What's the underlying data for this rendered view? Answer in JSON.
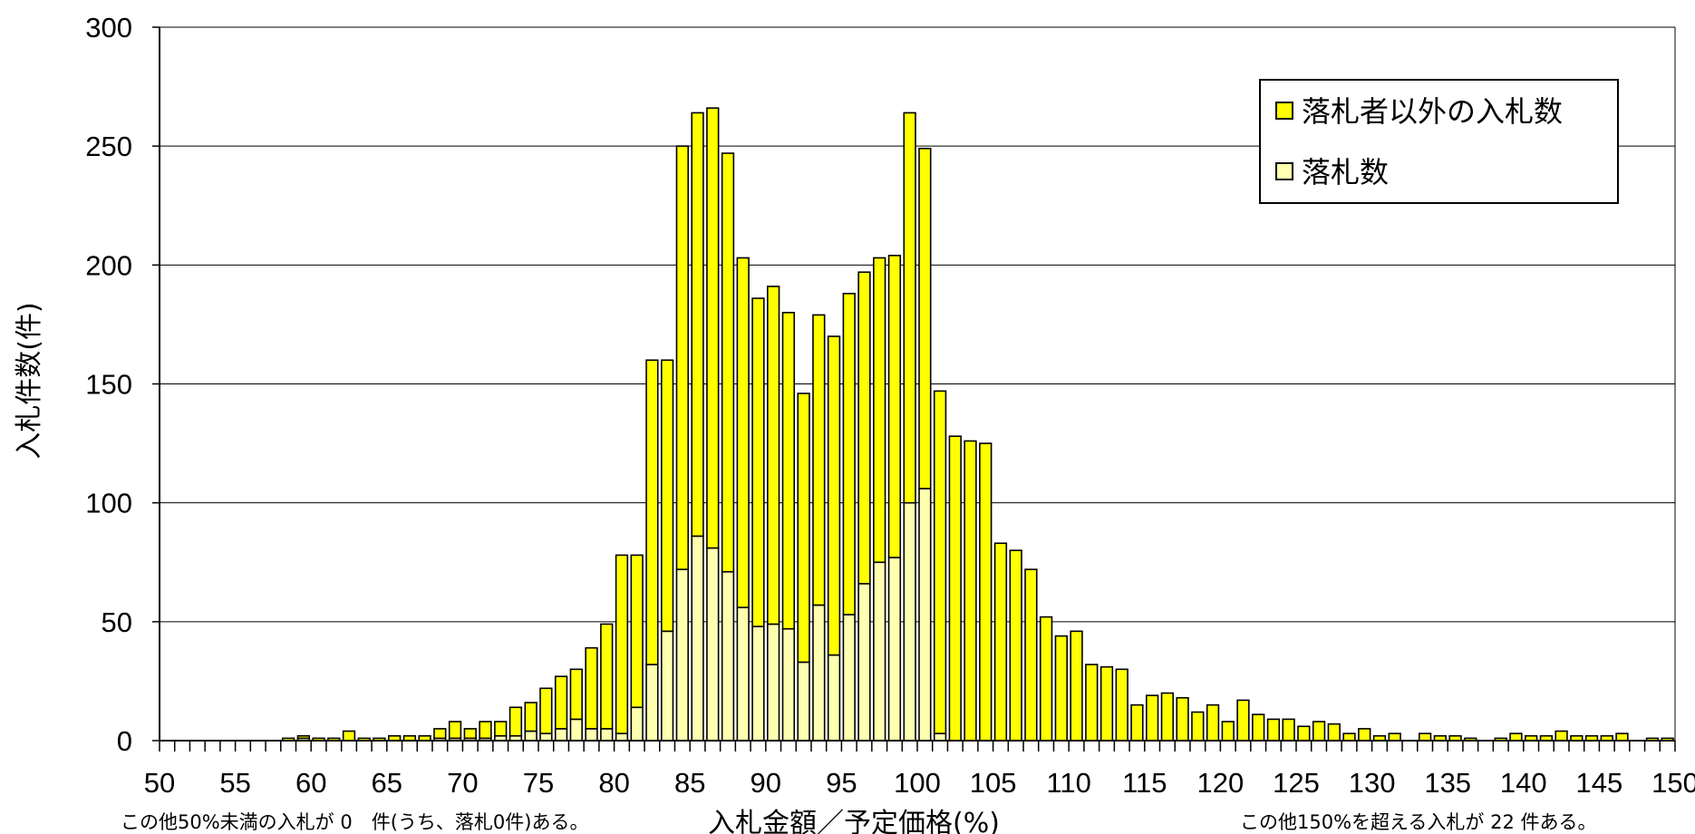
{
  "chart_data": {
    "type": "bar",
    "stacked": true,
    "xlabel": "入札金額／予定価格(%)",
    "ylabel": "入札件数(件)",
    "ylim": [
      0,
      300
    ],
    "xlim": [
      50,
      150
    ],
    "bin_width": 1,
    "y_ticks": [
      0,
      50,
      100,
      150,
      200,
      250,
      300
    ],
    "x_ticks": [
      50,
      55,
      60,
      65,
      70,
      75,
      80,
      85,
      90,
      95,
      100,
      105,
      110,
      115,
      120,
      125,
      130,
      135,
      140,
      145,
      150
    ],
    "grid": "horizontal",
    "legend_position": "top-right",
    "x": [
      50,
      51,
      52,
      53,
      54,
      55,
      56,
      57,
      58,
      59,
      60,
      61,
      62,
      63,
      64,
      65,
      66,
      67,
      68,
      69,
      70,
      71,
      72,
      73,
      74,
      75,
      76,
      77,
      78,
      79,
      80,
      81,
      82,
      83,
      84,
      85,
      86,
      87,
      88,
      89,
      90,
      91,
      92,
      93,
      94,
      95,
      96,
      97,
      98,
      99,
      100,
      101,
      102,
      103,
      104,
      105,
      106,
      107,
      108,
      109,
      110,
      111,
      112,
      113,
      114,
      115,
      116,
      117,
      118,
      119,
      120,
      121,
      122,
      123,
      124,
      125,
      126,
      127,
      128,
      129,
      130,
      131,
      132,
      133,
      134,
      135,
      136,
      137,
      138,
      139,
      140,
      141,
      142,
      143,
      144,
      145,
      146,
      147,
      148,
      149
    ],
    "series": [
      {
        "name": "落札数",
        "color": "#FFFFB0",
        "values": [
          0,
          0,
          0,
          0,
          0,
          0,
          0,
          0,
          0,
          1,
          0,
          0,
          0,
          0,
          0,
          0,
          0,
          0,
          1,
          1,
          1,
          1,
          2,
          2,
          4,
          3,
          5,
          9,
          5,
          5,
          3,
          14,
          32,
          46,
          72,
          86,
          81,
          71,
          56,
          48,
          49,
          47,
          33,
          57,
          36,
          53,
          66,
          75,
          77,
          100,
          106,
          3,
          0,
          0,
          0,
          0,
          0,
          0,
          0,
          0,
          0,
          0,
          0,
          0,
          0,
          0,
          0,
          0,
          0,
          0,
          0,
          0,
          0,
          0,
          0,
          0,
          0,
          0,
          0,
          0,
          0,
          0,
          0,
          0,
          0,
          0,
          0,
          0,
          0,
          0,
          0,
          0,
          0,
          0,
          0,
          0,
          0,
          0,
          0,
          0
        ]
      },
      {
        "name": "落札者以外の入札数",
        "color": "#FFFF00",
        "values": [
          0,
          0,
          0,
          0,
          0,
          0,
          0,
          0,
          1,
          1,
          1,
          1,
          4,
          1,
          1,
          2,
          2,
          2,
          4,
          7,
          4,
          7,
          6,
          12,
          12,
          19,
          22,
          21,
          34,
          44,
          75,
          64,
          128,
          114,
          178,
          178,
          185,
          176,
          147,
          138,
          142,
          133,
          113,
          122,
          134,
          135,
          131,
          128,
          127,
          164,
          143,
          144,
          128,
          126,
          125,
          83,
          80,
          72,
          52,
          44,
          46,
          32,
          31,
          30,
          15,
          19,
          20,
          18,
          12,
          15,
          8,
          17,
          11,
          9,
          9,
          6,
          8,
          7,
          3,
          5,
          2,
          3,
          0,
          3,
          2,
          2,
          1,
          0,
          1,
          3,
          2,
          2,
          4,
          2,
          2,
          2,
          3,
          0,
          1,
          1
        ]
      }
    ]
  },
  "notes": {
    "left": "この他50%未満の入札が 0　件(うち、落札0件)ある。",
    "right": "この他150%を超える入札が 22 件ある。"
  }
}
